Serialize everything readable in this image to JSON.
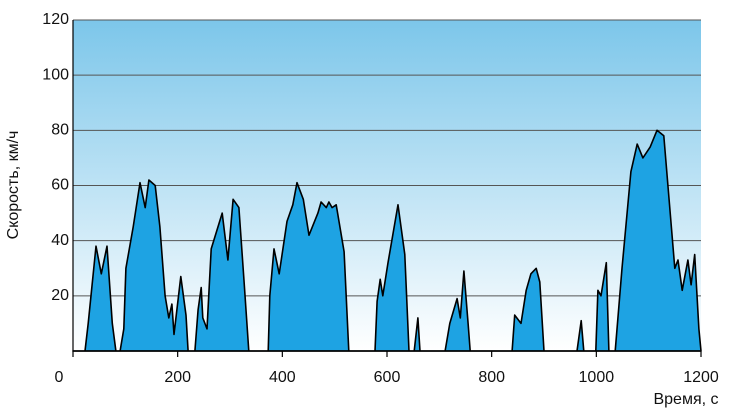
{
  "chart_data": {
    "type": "area",
    "x_label": "Время, с",
    "y_label": "Скорость, км/ч",
    "color": "#1ea3e3",
    "grid": true,
    "xlim": [
      0,
      1200
    ],
    "xticks": [
      0,
      200,
      400,
      600,
      800,
      1000,
      1200
    ],
    "ylim": [
      0,
      120
    ],
    "yticks": [
      20,
      40,
      60,
      80,
      100,
      120
    ],
    "x": [
      0,
      23,
      29,
      44,
      54,
      65,
      75,
      82,
      90,
      97,
      101,
      115,
      128,
      138,
      145,
      157,
      166,
      176,
      183,
      189,
      193,
      206,
      216,
      220,
      233,
      239,
      245,
      248,
      256,
      264,
      285,
      296,
      306,
      317,
      327,
      336,
      373,
      376,
      384,
      394,
      409,
      420,
      428,
      440,
      451,
      468,
      474,
      484,
      489,
      495,
      503,
      518,
      527,
      577,
      581,
      587,
      592,
      602,
      621,
      634,
      642,
      652,
      659,
      663,
      711,
      720,
      734,
      740,
      747,
      755,
      759,
      839,
      844,
      856,
      866,
      875,
      885,
      892,
      900,
      963,
      971,
      976,
      999,
      1003,
      1009,
      1019,
      1024,
      1036,
      1049,
      1066,
      1078,
      1089,
      1103,
      1116,
      1129,
      1150,
      1156,
      1164,
      1175,
      1181,
      1188,
      1196,
      1200
    ],
    "values": [
      0,
      0,
      10,
      38,
      28,
      38,
      10,
      0,
      0,
      8,
      30,
      45,
      61,
      52,
      62,
      60,
      45,
      20,
      12,
      17,
      6,
      27,
      13,
      0,
      0,
      15,
      23,
      12,
      8,
      37,
      50,
      33,
      55,
      52,
      25,
      0,
      0,
      20,
      37,
      28,
      47,
      53,
      61,
      55,
      42,
      50,
      54,
      52,
      54,
      52,
      53,
      36,
      0,
      0,
      18,
      26,
      20,
      32,
      53,
      35,
      0,
      0,
      12,
      0,
      0,
      10,
      19,
      12,
      29,
      10,
      0,
      0,
      13,
      10,
      22,
      28,
      30,
      25,
      0,
      0,
      11,
      0,
      0,
      22,
      20,
      32,
      0,
      0,
      30,
      65,
      75,
      70,
      74,
      80,
      78,
      30,
      33,
      22,
      33,
      24,
      35,
      8,
      0
    ]
  }
}
